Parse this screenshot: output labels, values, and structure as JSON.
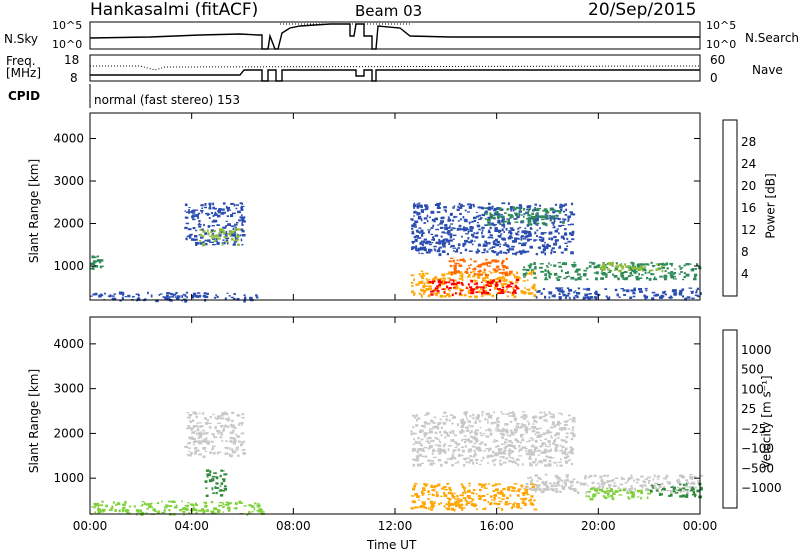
{
  "header": {
    "station": "Hankasalmi (fitACF)",
    "beam": "Beam 03",
    "date": "20/Sep/2015"
  },
  "top_panels": {
    "nsky_label": "N.Sky",
    "nsky_ticks": [
      "10^5",
      "10^0"
    ],
    "nsearch_label": "N.Search",
    "nsearch_ticks": [
      "10^5",
      "10^0"
    ],
    "freq_label": "Freq.",
    "freq_unit": "[MHz]",
    "freq_ticks": [
      "18",
      "8"
    ],
    "nave_label": "Nave",
    "nave_ticks": [
      "60",
      "0"
    ],
    "cpid_label": "CPID",
    "cpid_text": "normal (fast stereo) 153"
  },
  "chart_data": [
    {
      "type": "heatmap",
      "name": "power-panel",
      "ylabel": "Slant Range [km]",
      "xlabel": "",
      "y_ticks": [
        "4000",
        "3000",
        "2000",
        "1000"
      ],
      "ylim": [
        200,
        4600
      ],
      "xlim_hours": [
        0,
        24
      ],
      "colorbar_label": "Power [dB]",
      "colorbar_ticks": [
        "28",
        "24",
        "20",
        "16",
        "12",
        "8",
        "4"
      ],
      "colorbar_colors": [
        "#0000ff",
        "#2a4db0",
        "#2e8b57",
        "#8fbc3a",
        "#ffd700",
        "#ffa500",
        "#ff6a00",
        "#ff0000"
      ],
      "echo_regions": [
        {
          "t0": 0.0,
          "t1": 6.8,
          "r0": 200,
          "r1": 400,
          "color": "#2a4db0"
        },
        {
          "t0": 0.0,
          "t1": 0.4,
          "r0": 950,
          "r1": 1250,
          "color": "#2e8b57"
        },
        {
          "t0": 3.7,
          "t1": 6.0,
          "r0": 1500,
          "r1": 2500,
          "color": "#2a4db0"
        },
        {
          "t0": 4.2,
          "t1": 5.8,
          "r0": 1500,
          "r1": 1900,
          "color": "#8fbc3a"
        },
        {
          "t0": 12.6,
          "t1": 19.0,
          "r0": 1300,
          "r1": 2500,
          "color": "#2a4db0"
        },
        {
          "t0": 15.5,
          "t1": 18.6,
          "r0": 2000,
          "r1": 2400,
          "color": "#2e8b57"
        },
        {
          "t0": 12.6,
          "t1": 17.5,
          "r0": 300,
          "r1": 900,
          "color": "#ffa500"
        },
        {
          "t0": 13.3,
          "t1": 16.8,
          "r0": 350,
          "r1": 700,
          "color": "#ff0000"
        },
        {
          "t0": 14.0,
          "t1": 16.5,
          "r0": 800,
          "r1": 1200,
          "color": "#ff6a00"
        },
        {
          "t0": 17.0,
          "t1": 24.0,
          "r0": 700,
          "r1": 1100,
          "color": "#2e8b57"
        },
        {
          "t0": 20.0,
          "t1": 22.5,
          "r0": 900,
          "r1": 1100,
          "color": "#8fbc3a"
        },
        {
          "t0": 17.5,
          "t1": 24.0,
          "r0": 250,
          "r1": 500,
          "color": "#2a4db0"
        }
      ]
    },
    {
      "type": "heatmap",
      "name": "velocity-panel",
      "ylabel": "Slant Range [km]",
      "xlabel": "Time UT",
      "y_ticks": [
        "4000",
        "3000",
        "2000",
        "1000"
      ],
      "ylim": [
        200,
        4600
      ],
      "xlim_hours": [
        0,
        24
      ],
      "x_ticks": [
        "00:00",
        "04:00",
        "08:00",
        "12:00",
        "16:00",
        "20:00",
        "00:00"
      ],
      "colorbar_label": "Velocity [m s⁻¹]",
      "colorbar_ticks": [
        "1000",
        "500",
        "100",
        "25",
        "−25",
        "−100",
        "−500",
        "−1000"
      ],
      "colorbar_colors": [
        "#2050c8",
        "#1a6b80",
        "#2e8b3a",
        "#7fd13a",
        "#c8c8c8",
        "#ffd700",
        "#ffa500",
        "#ff7f00",
        "#ff0000"
      ],
      "echo_regions": [
        {
          "t0": 0.0,
          "t1": 6.8,
          "r0": 200,
          "r1": 500,
          "color": "#7fd13a"
        },
        {
          "t0": 3.7,
          "t1": 6.0,
          "r0": 1500,
          "r1": 2500,
          "color": "#c8c8c8"
        },
        {
          "t0": 4.5,
          "t1": 5.3,
          "r0": 600,
          "r1": 1200,
          "color": "#2e8b3a"
        },
        {
          "t0": 12.6,
          "t1": 19.0,
          "r0": 1300,
          "r1": 2500,
          "color": "#c8c8c8"
        },
        {
          "t0": 12.6,
          "t1": 17.5,
          "r0": 300,
          "r1": 900,
          "color": "#ffa500"
        },
        {
          "t0": 17.0,
          "t1": 24.0,
          "r0": 700,
          "r1": 1100,
          "color": "#c8c8c8"
        },
        {
          "t0": 19.5,
          "t1": 22.0,
          "r0": 550,
          "r1": 800,
          "color": "#7fd13a"
        },
        {
          "t0": 22.0,
          "t1": 24.0,
          "r0": 600,
          "r1": 900,
          "color": "#2e8b3a"
        }
      ]
    }
  ]
}
